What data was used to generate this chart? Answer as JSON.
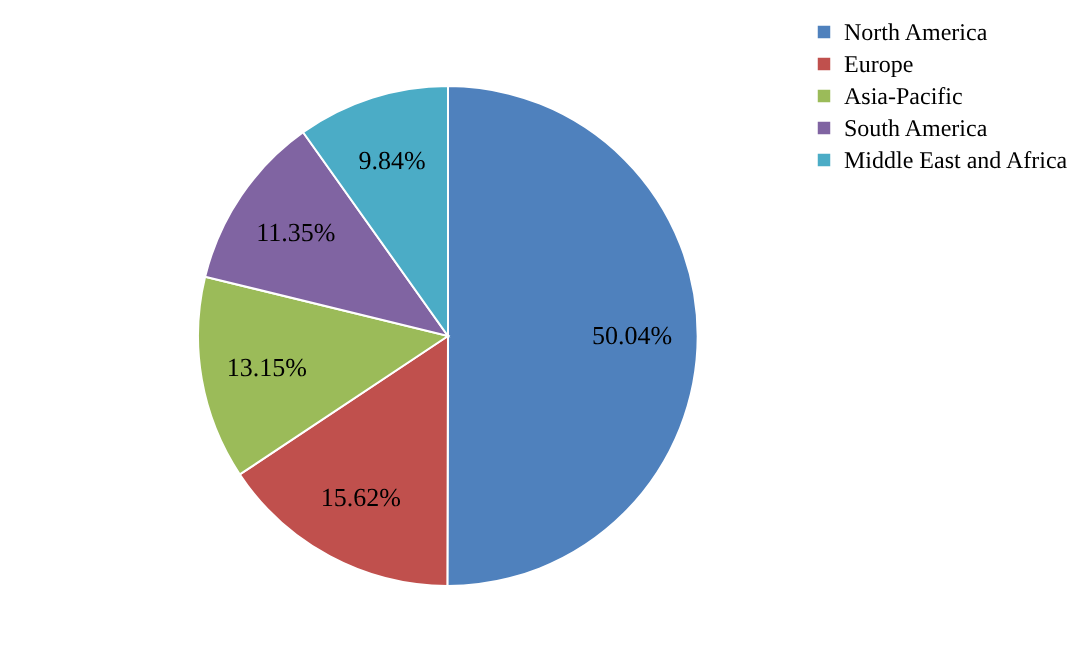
{
  "chart_data": {
    "type": "pie",
    "categories": [
      "North America",
      "Europe",
      "Asia-Pacific",
      "South America",
      "Middle East and Africa"
    ],
    "values": [
      50.04,
      15.62,
      13.15,
      11.35,
      9.84
    ],
    "colors": [
      "#4f81bd",
      "#c0504d",
      "#9bbb59",
      "#8064a2",
      "#4bacc6"
    ],
    "value_labels": [
      "50.04%",
      "15.62%",
      "13.15%",
      "11.35%",
      "9.84%"
    ],
    "legend": "right"
  }
}
